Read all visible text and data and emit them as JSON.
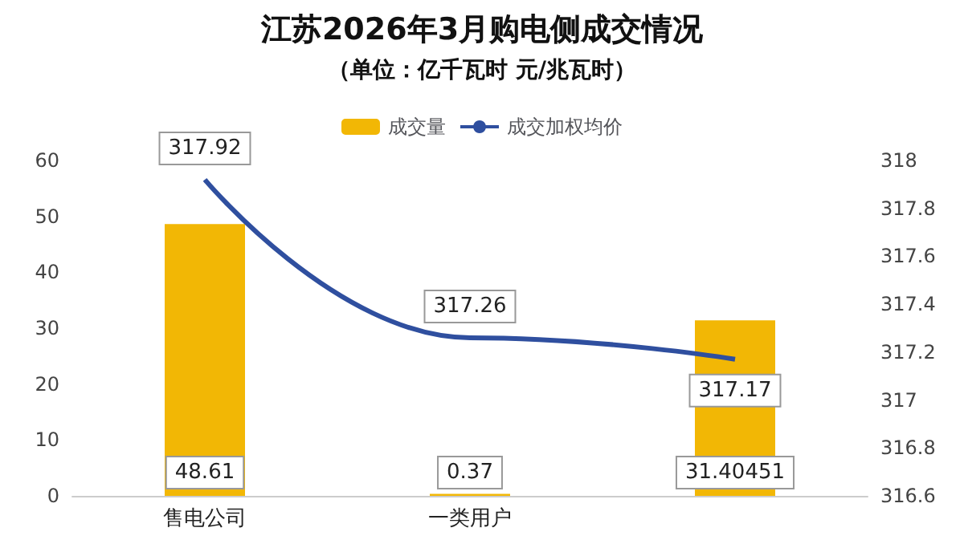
{
  "chart_data": {
    "type": "bar",
    "title": "江苏2026年3月购电侧成交情况",
    "subtitle": "（单位：亿千瓦时 元/兆瓦时）",
    "categories": [
      "售电公司",
      "一类用户",
      null
    ],
    "series": [
      {
        "name": "成交量",
        "color": "#f2b705",
        "values": [
          48.61,
          0.37,
          31.40451
        ]
      },
      {
        "name": "成交加权均价",
        "type": "line",
        "color": "#2f4f9f",
        "axis": "y2",
        "values": [
          317.92,
          317.26,
          317.17
        ]
      }
    ],
    "ylim": [
      0,
      60
    ],
    "yticks": [
      0,
      10,
      20,
      30,
      40,
      50,
      60
    ],
    "y2lim": [
      316.6,
      318
    ],
    "y2ticks": [
      316.6,
      316.8,
      317,
      317.2,
      317.4,
      317.6,
      317.8,
      318
    ],
    "data_labels": true,
    "legend": "top",
    "grid": false,
    "marker": "none",
    "line_style": "solid"
  }
}
